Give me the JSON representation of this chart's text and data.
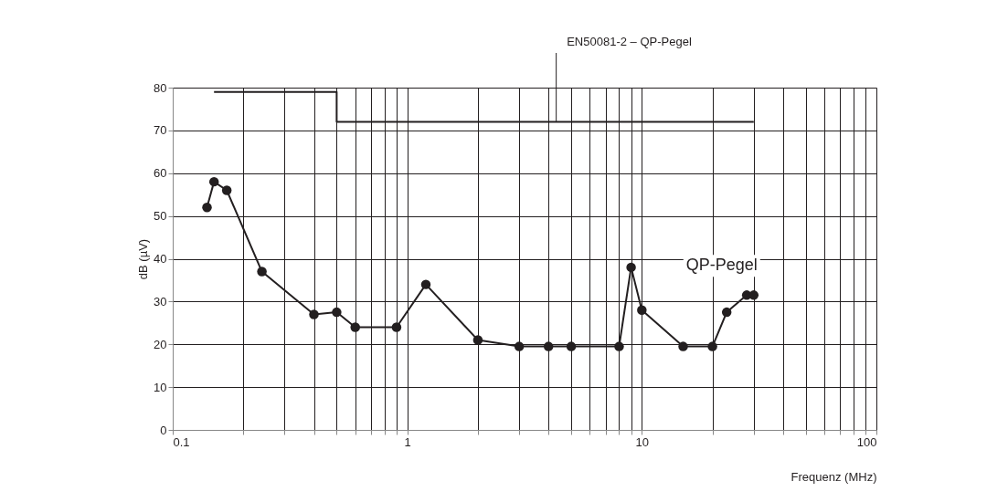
{
  "chart_data": {
    "type": "line",
    "xlabel": "Frequenz (MHz)",
    "ylabel": "dB (µV)",
    "series": [
      {
        "name": "EN50081-2 – QP-Pegel",
        "type": "step",
        "color": "#231f20",
        "marker": "none",
        "x": [
          0.15,
          0.5,
          30
        ],
        "values": [
          79,
          72,
          72
        ]
      },
      {
        "name": "QP-Pegel",
        "type": "line",
        "color": "#231f20",
        "marker": "circle",
        "x": [
          0.14,
          0.15,
          0.17,
          0.24,
          0.4,
          0.5,
          0.6,
          0.9,
          1.2,
          2,
          3,
          4,
          5,
          8,
          9,
          10,
          15,
          20,
          23,
          28,
          30
        ],
        "values": [
          52,
          58,
          56,
          37,
          27,
          27.5,
          24,
          24,
          34,
          21,
          19.5,
          19.5,
          19.5,
          19.5,
          38,
          28,
          19.5,
          19.5,
          27.5,
          31.5,
          31.5
        ]
      }
    ],
    "log": "x",
    "xlim": [
      0.1,
      100
    ],
    "xticks": [
      0.1,
      {
        "value": 0.2,
        "label": null
      },
      {
        "value": 0.3,
        "label": null
      },
      {
        "value": 0.4,
        "label": null
      },
      {
        "value": 0.5,
        "label": null
      },
      {
        "value": 0.6,
        "label": null
      },
      {
        "value": 0.7,
        "label": null
      },
      {
        "value": 0.8,
        "label": null
      },
      {
        "value": 0.9,
        "label": null
      },
      1,
      {
        "value": 2,
        "label": null
      },
      {
        "value": 3,
        "label": null
      },
      {
        "value": 4,
        "label": null
      },
      {
        "value": 5,
        "label": null
      },
      {
        "value": 6,
        "label": null
      },
      {
        "value": 7,
        "label": null
      },
      {
        "value": 8,
        "label": null
      },
      {
        "value": 9,
        "label": null
      },
      10,
      {
        "value": 20,
        "label": null
      },
      {
        "value": 30,
        "label": null
      },
      {
        "value": 40,
        "label": null
      },
      {
        "value": 50,
        "label": null
      },
      {
        "value": 60,
        "label": null
      },
      {
        "value": 70,
        "label": null
      },
      {
        "value": 80,
        "label": null
      },
      {
        "value": 90,
        "label": null
      },
      100
    ],
    "ylim": [
      0,
      80
    ],
    "yticks": [
      0,
      10,
      20,
      30,
      40,
      50,
      60,
      70,
      80
    ],
    "grid": true,
    "legend": false
  }
}
